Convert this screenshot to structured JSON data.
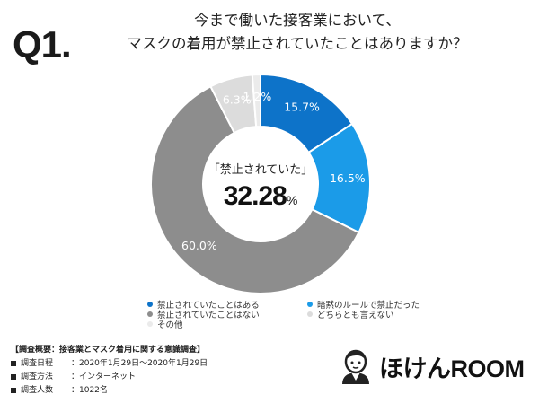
{
  "question_number": "Q1.",
  "question_lines": [
    "今まで働いた接客業において、",
    "マスクの着用が禁止されていたことはありますか？"
  ],
  "center": {
    "label": "「禁止されていた」",
    "value": "32.28",
    "unit": "%"
  },
  "chart_data": {
    "type": "pie",
    "donut": true,
    "start": "top, clockwise",
    "labels": [
      "禁止されていたことはある",
      "暗黙のルールで禁止だった",
      "禁止されていたことはない",
      "どちらとも言えない",
      "その他"
    ],
    "values": [
      15.7,
      16.5,
      60.0,
      6.3,
      1.2
    ],
    "data_labels": [
      "15.7%",
      "16.5%",
      "60.0%",
      "6.3%",
      "1.2%"
    ],
    "colors": [
      "#0d73c9",
      "#1b9be8",
      "#8d8d8d",
      "#dcdcdc",
      "#ebebeb"
    ],
    "label_colors": [
      "#ffffff",
      "#ffffff",
      "#ffffff",
      "#ffffff",
      "#ffffff"
    ]
  },
  "survey": {
    "title": "【調査概要：接客業とマスク着用に関する意識調査】",
    "rows": [
      {
        "key": "調査日程",
        "value": "：2020年1月29日〜2020年1月29日"
      },
      {
        "key": "調査方法",
        "value": "：インターネット"
      },
      {
        "key": "調査人数",
        "value": "：1022名"
      }
    ]
  },
  "brand": {
    "name": "ほけんROOM",
    "logo_icon": "person-face-icon"
  }
}
